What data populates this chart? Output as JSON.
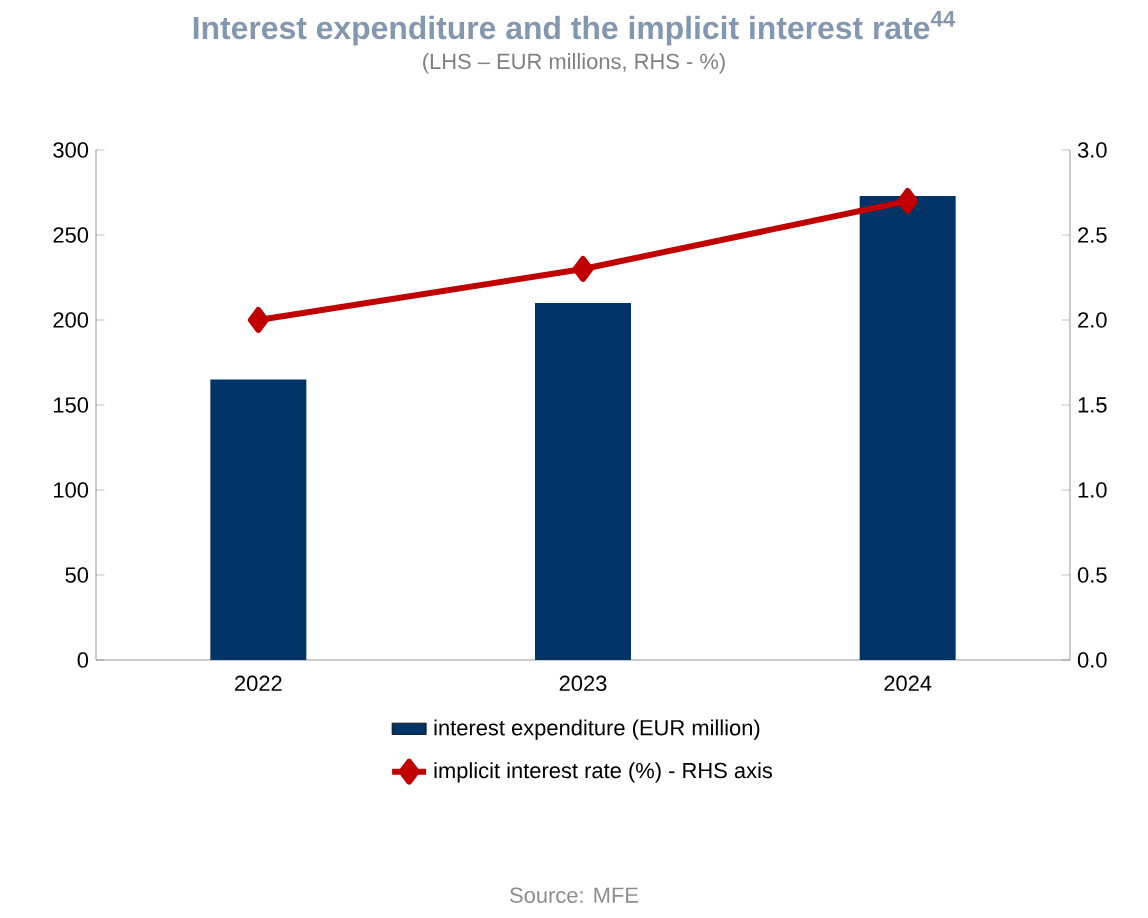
{
  "chart_data": {
    "type": "bar",
    "title": "Interest expenditure and the implicit interest rate$^{44}$",
    "subtitle": "(LHS – EUR millions, RHS - %)",
    "categories": [
      "2022",
      "2023",
      "2024"
    ],
    "series": [
      {
        "name": "interest expenditure (EUR million)",
        "color": "#003366",
        "values": [
          165,
          210,
          273
        ]
      },
      {
        "name": "implicit interest rate (%) - RHS axis",
        "type": "line",
        "axis": "y2",
        "color": "#c00000",
        "values": [
          2.0,
          2.3,
          2.7
        ]
      }
    ],
    "ylim": [
      0,
      300
    ],
    "yticks": [
      0,
      50,
      100,
      150,
      200,
      250,
      300
    ],
    "y2lim": [
      0,
      3
    ],
    "y2ticks": [
      {
        "value": 0,
        "label": "0.0"
      },
      {
        "value": 0.5,
        "label": "0.5"
      },
      {
        "value": 1,
        "label": "1.0"
      },
      {
        "value": 1.5,
        "label": "1.5"
      },
      {
        "value": 2,
        "label": "2.0"
      },
      {
        "value": 2.5,
        "label": "2.5"
      },
      {
        "value": 3,
        "label": "3.0"
      }
    ],
    "marker": "diamond",
    "legend": "bottom",
    "annotations": [
      "Source: MFE"
    ]
  }
}
